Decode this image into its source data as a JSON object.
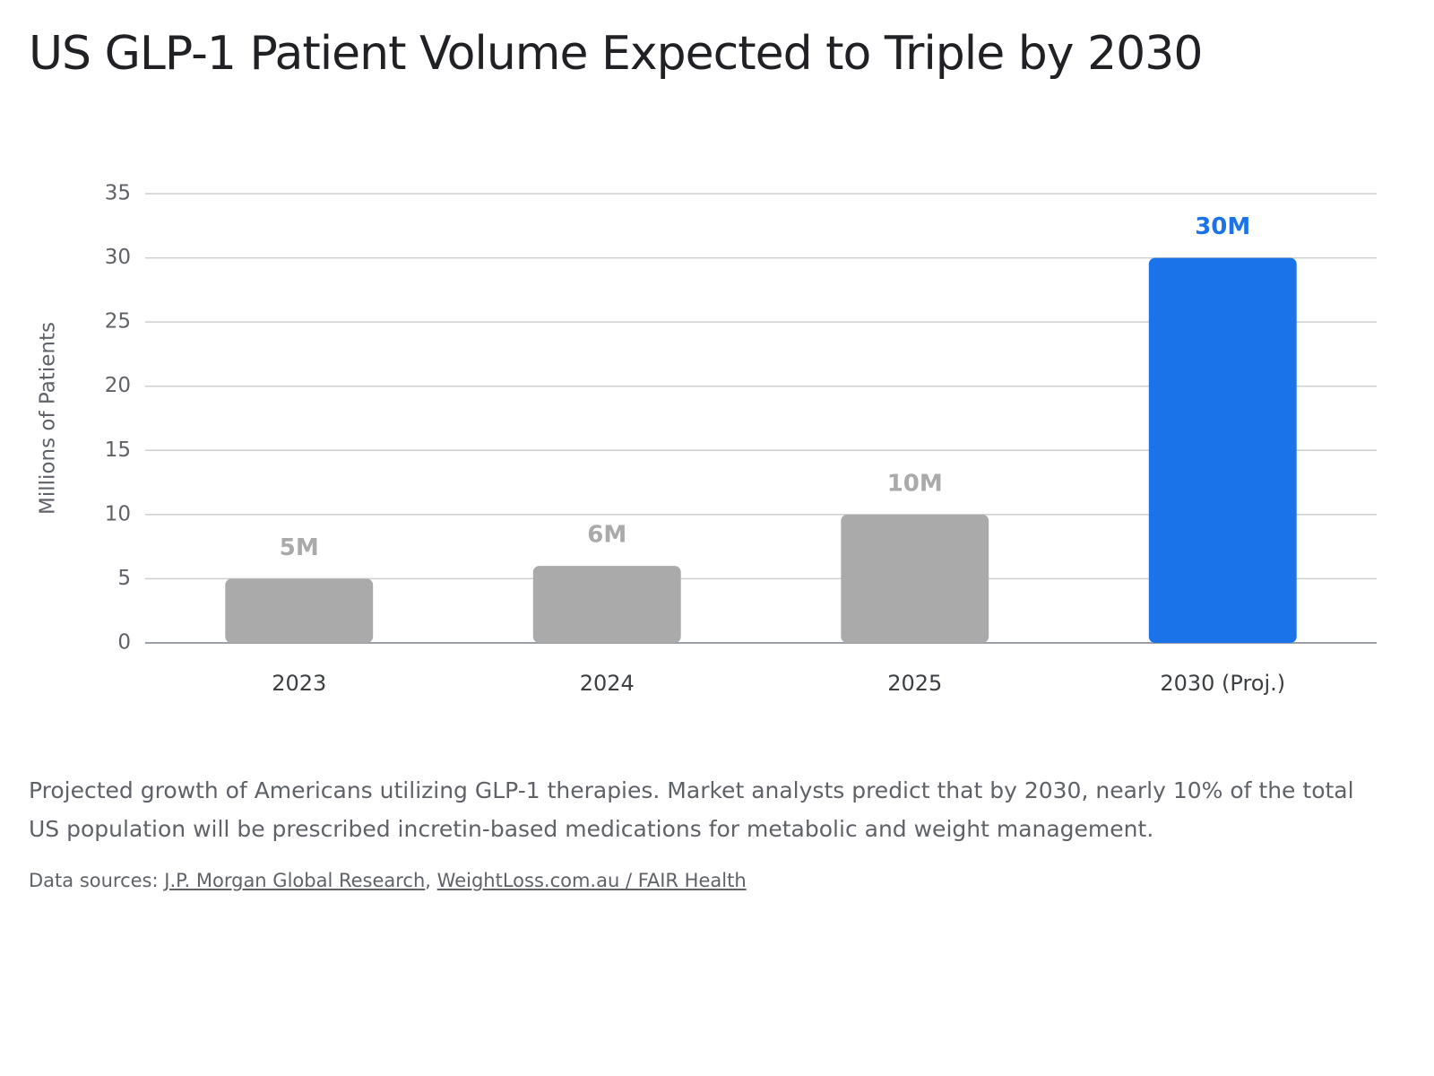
{
  "chart_data": {
    "type": "bar",
    "title": "US GLP-1 Patient Volume Expected to Triple by 2030",
    "y_label": "Millions of Patients",
    "categories": [
      "2023",
      "2024",
      "2025",
      "2030 (Proj.)"
    ],
    "values": [
      5,
      6,
      10,
      30
    ],
    "value_labels": [
      "5M",
      "6M",
      "10M",
      "30M"
    ],
    "colors": [
      "#aaaaaa",
      "#aaaaaa",
      "#aaaaaa",
      "#1a73e8"
    ],
    "ylim": [
      0,
      35
    ],
    "yticks": [
      0,
      5,
      10,
      15,
      20,
      25,
      30,
      35
    ],
    "grid": true,
    "caption": "Projected growth of Americans utilizing GLP-1 therapies. Market analysts predict that by 2030, nearly 10% of the total US population will be prescribed incretin-based medications for metabolic and weight management.",
    "sources_label": "Data sources:",
    "sources": [
      "J.P. Morgan Global Research",
      "WeightLoss.com.au / FAIR Health"
    ],
    "source_separator": ","
  }
}
